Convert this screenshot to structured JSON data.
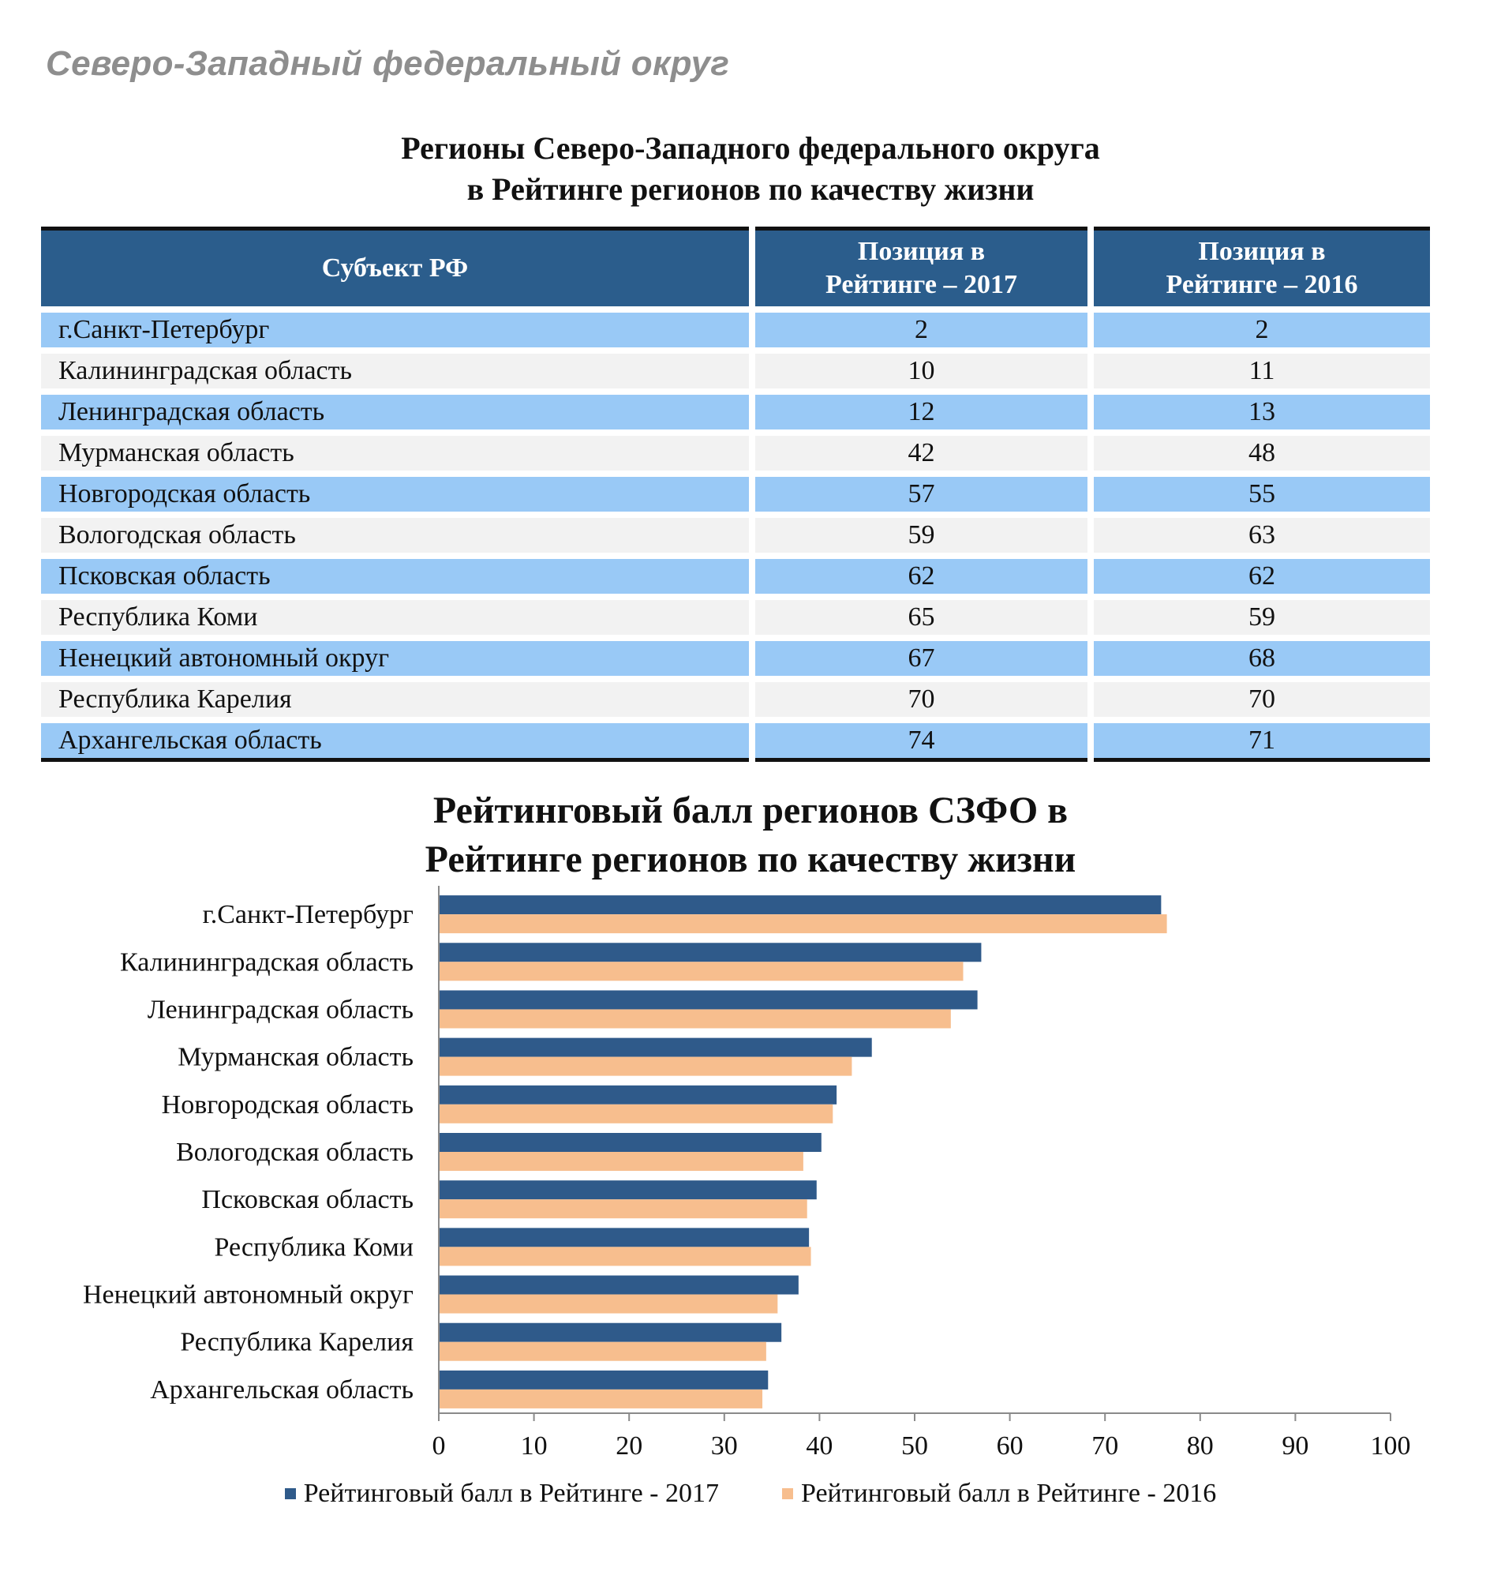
{
  "header": {
    "text": "Северо-Западный федеральный округ"
  },
  "table": {
    "title_line1": "Регионы Северо-Западного федерального округа",
    "title_line2": "в Рейтинге регионов по качеству жизни",
    "col_subject": "Субъект РФ",
    "col_2017_line1": "Позиция в",
    "col_2017_line2": "Рейтинге – 2017",
    "col_2016_line1": "Позиция в",
    "col_2016_line2": "Рейтинге – 2016",
    "rows": [
      {
        "name": "г.Санкт-Петербург",
        "pos2017": "2",
        "pos2016": "2"
      },
      {
        "name": "Калининградская область",
        "pos2017": "10",
        "pos2016": "11"
      },
      {
        "name": "Ленинградская область",
        "pos2017": "12",
        "pos2016": "13"
      },
      {
        "name": "Мурманская область",
        "pos2017": "42",
        "pos2016": "48"
      },
      {
        "name": "Новгородская область",
        "pos2017": "57",
        "pos2016": "55"
      },
      {
        "name": "Вологодская область",
        "pos2017": "59",
        "pos2016": "63"
      },
      {
        "name": "Псковская область",
        "pos2017": "62",
        "pos2016": "62"
      },
      {
        "name": "Республика Коми",
        "pos2017": "65",
        "pos2016": "59"
      },
      {
        "name": "Ненецкий автономный округ",
        "pos2017": "67",
        "pos2016": "68"
      },
      {
        "name": "Республика Карелия",
        "pos2017": "70",
        "pos2016": "70"
      },
      {
        "name": "Архангельская область",
        "pos2017": "74",
        "pos2016": "71"
      }
    ],
    "colors": {
      "header_bg": "#2b5d8c",
      "row_odd": "#99c9f6",
      "row_even": "#f2f2f2"
    }
  },
  "chart_data": {
    "type": "bar",
    "orientation": "horizontal",
    "title_line1": "Рейтинговый балл регионов СЗФО в",
    "title_line2": "Рейтинге регионов по качеству жизни",
    "categories": [
      "г.Санкт-Петербург",
      "Калининградская область",
      "Ленинградская область",
      "Мурманская область",
      "Новгородская область",
      "Вологодская область",
      "Псковская область",
      "Республика Коми",
      "Ненецкий автономный округ",
      "Республика Карелия",
      "Архангельская область"
    ],
    "series": [
      {
        "name": "Рейтинговый балл в Рейтинге - 2017",
        "color": "#2f5a8a",
        "values": [
          75.9,
          57.0,
          56.6,
          45.5,
          41.8,
          40.2,
          39.7,
          38.9,
          37.8,
          36.0,
          34.6
        ]
      },
      {
        "name": "Рейтинговый балл в Рейтинге - 2016",
        "color": "#f7be8e",
        "values": [
          76.5,
          55.1,
          53.8,
          43.4,
          41.4,
          38.3,
          38.7,
          39.1,
          35.6,
          34.4,
          34.0
        ]
      }
    ],
    "xlim": [
      0,
      100
    ],
    "xticks": [
      0,
      10,
      20,
      30,
      40,
      50,
      60,
      70,
      80,
      90,
      100
    ],
    "grid": false,
    "legend_position": "bottom"
  }
}
